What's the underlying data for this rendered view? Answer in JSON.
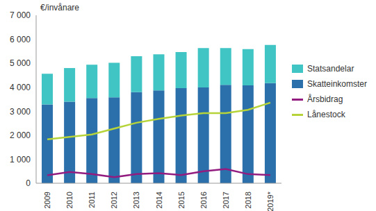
{
  "chart_data": {
    "type": "bar",
    "y_label": "€/invånare",
    "stacked": true,
    "grid": false,
    "legend": "right",
    "categories": [
      "2009",
      "2010",
      "2011",
      "2012",
      "2013",
      "2014",
      "2015",
      "2016",
      "2017",
      "2018",
      "2019*"
    ],
    "series": [
      {
        "name": "Skatteinkomster",
        "type": "bar",
        "color": "#2b70ab",
        "values": [
          3280,
          3400,
          3550,
          3580,
          3800,
          3870,
          3960,
          3990,
          4100,
          4080,
          4170
        ]
      },
      {
        "name": "Statsandelar",
        "type": "bar",
        "color": "#40c4c4",
        "values": [
          1280,
          1400,
          1390,
          1440,
          1490,
          1500,
          1510,
          1640,
          1530,
          1510,
          1590
        ]
      },
      {
        "name": "Årsbidrag",
        "type": "line",
        "color": "#921c7f",
        "values": [
          330,
          470,
          380,
          250,
          380,
          420,
          340,
          500,
          590,
          380,
          340
        ]
      },
      {
        "name": "Lånestock",
        "type": "line",
        "color": "#b6d43a",
        "values": [
          1830,
          1930,
          2030,
          2280,
          2520,
          2680,
          2820,
          2920,
          2920,
          3060,
          3360
        ]
      }
    ],
    "ylim": [
      0,
      7000
    ],
    "yticks": [
      0,
      {
        "value": 1000,
        "label": "1 000"
      },
      {
        "value": 2000,
        "label": "2 000"
      },
      {
        "value": 3000,
        "label": "3 000"
      },
      {
        "value": 4000,
        "label": "4 000"
      },
      {
        "value": 5000,
        "label": "5 000"
      },
      {
        "value": 6000,
        "label": "6 000"
      },
      {
        "value": 7000,
        "label": "7 000"
      }
    ]
  }
}
